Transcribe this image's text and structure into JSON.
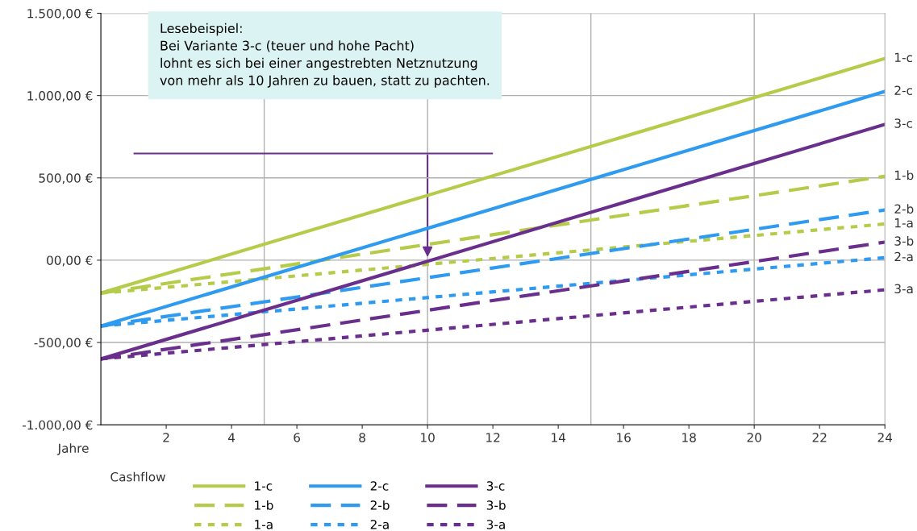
{
  "chart_data": {
    "type": "line",
    "xlabel": "Jahre",
    "legend_title": "Cashflow",
    "legend": "bottom",
    "grid": "y",
    "x": [
      0,
      24
    ],
    "xlim": [
      0,
      24
    ],
    "xticks": [
      2,
      4,
      6,
      8,
      10,
      12,
      14,
      16,
      18,
      20,
      22,
      24
    ],
    "ylim": [
      -1000,
      1500
    ],
    "yticks": [
      {
        "value": -1000,
        "label": "-1.000,00 €"
      },
      {
        "value": -500,
        "label": "-500,00 €"
      },
      {
        "value": 0,
        "label": "00,00 €"
      },
      {
        "value": 500,
        "label": "500,00 €"
      },
      {
        "value": 1000,
        "label": "1.000,00 €"
      },
      {
        "value": 1500,
        "label": "1.500,00 €"
      }
    ],
    "ref_lines": [
      {
        "axis": "x",
        "value": 5,
        "color": "#b0b0b0"
      },
      {
        "axis": "x",
        "value": 10,
        "color": "#b0b0b0"
      },
      {
        "axis": "x",
        "value": 15,
        "color": "#b0b0b0"
      },
      {
        "axis": "x",
        "value": 20,
        "color": "#b0b0b0"
      }
    ],
    "series": [
      {
        "name": "1-c",
        "color": "#b5cc4a",
        "line_style": "solid",
        "values": [
          -200,
          1225
        ]
      },
      {
        "name": "1-b",
        "color": "#b5cc4a",
        "line_style": "dashed",
        "values": [
          -200,
          510
        ]
      },
      {
        "name": "1-a",
        "color": "#b5cc4a",
        "line_style": "dotted",
        "values": [
          -200,
          220
        ]
      },
      {
        "name": "2-c",
        "color": "#2e9bf0",
        "line_style": "solid",
        "values": [
          -400,
          1025
        ]
      },
      {
        "name": "2-b",
        "color": "#2e9bf0",
        "line_style": "dashed",
        "values": [
          -400,
          305
        ]
      },
      {
        "name": "2-a",
        "color": "#2e9bf0",
        "line_style": "dotted",
        "values": [
          -400,
          15
        ]
      },
      {
        "name": "3-c",
        "color": "#6a2e8c",
        "line_style": "solid",
        "values": [
          -600,
          825
        ]
      },
      {
        "name": "3-b",
        "color": "#6a2e8c",
        "line_style": "dashed",
        "values": [
          -600,
          110
        ]
      },
      {
        "name": "3-a",
        "color": "#6a2e8c",
        "line_style": "dotted",
        "values": [
          -600,
          -180
        ]
      }
    ],
    "annotations": [
      "Lesebeispiel:\nBei Variante 3-c (teuer und hohe Pacht)\nlohnt es sich bei einer angestrebten Netznutzung\nvon mehr als 10 Jahren zu bauen, statt zu pachten."
    ]
  }
}
